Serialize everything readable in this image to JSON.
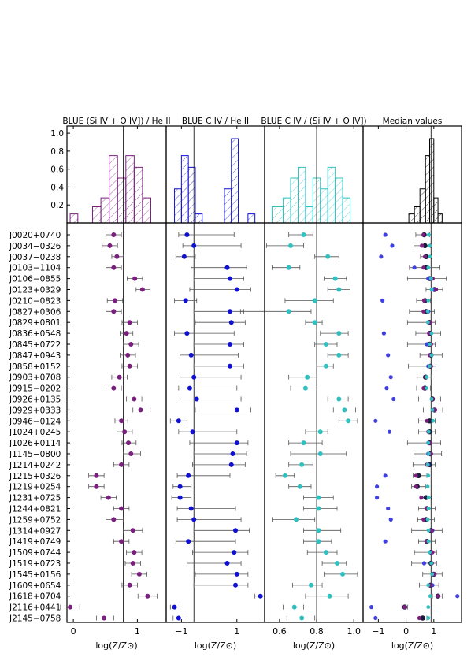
{
  "chart_data": {
    "type": "scatter",
    "panels": [
      {
        "title": "BLUE (Si IV + O IV]) / He II",
        "xlabel": "log(Z/Z⊙)",
        "xlim": [
          -0.1,
          1.45
        ],
        "xticks": [
          "0",
          "1"
        ],
        "xtick_values": [
          0,
          1
        ],
        "ref_line": 0.78,
        "color": "#7b1f7f",
        "hist_hatch": "#7b1f7f",
        "hist": [
          {
            "from": -0.05,
            "to": 0.07,
            "h": 0.1
          },
          {
            "from": 0.3,
            "to": 0.43,
            "h": 0.18
          },
          {
            "from": 0.43,
            "to": 0.56,
            "h": 0.28
          },
          {
            "from": 0.56,
            "to": 0.69,
            "h": 0.75
          },
          {
            "from": 0.69,
            "to": 0.82,
            "h": 0.5
          },
          {
            "from": 0.82,
            "to": 0.95,
            "h": 0.75
          },
          {
            "from": 0.95,
            "to": 1.08,
            "h": 0.62
          },
          {
            "from": 1.08,
            "to": 1.21,
            "h": 0.28
          }
        ]
      },
      {
        "title": "BLUE C IV / He II",
        "xlabel": "log(Z/Z⊙)",
        "xlim": [
          -1.55,
          2.0
        ],
        "xticks": [
          "−1",
          "1"
        ],
        "xtick_values": [
          -1,
          1
        ],
        "ref_line": -0.55,
        "color": "#1010d0",
        "hist_hatch": "#1010d0",
        "hist": [
          {
            "from": -1.25,
            "to": -1.0,
            "h": 0.38
          },
          {
            "from": -1.0,
            "to": -0.75,
            "h": 0.75
          },
          {
            "from": -0.75,
            "to": -0.5,
            "h": 0.62
          },
          {
            "from": -0.5,
            "to": -0.25,
            "h": 0.1
          },
          {
            "from": 0.55,
            "to": 0.8,
            "h": 0.38
          },
          {
            "from": 0.8,
            "to": 1.05,
            "h": 0.94
          },
          {
            "from": 1.4,
            "to": 1.65,
            "h": 0.1
          }
        ]
      },
      {
        "title": "BLUE C IV / (Si IV + O IV])",
        "xlabel": "log(Z/Z⊙)",
        "xlim": [
          0.52,
          1.05
        ],
        "xticks": [
          "0.6",
          "0.8",
          "1.0"
        ],
        "xtick_values": [
          0.6,
          0.8,
          1.0
        ],
        "ref_line": 0.8,
        "color": "#30c0c0",
        "hist_hatch": "#30c0c0",
        "hist": [
          {
            "from": 0.56,
            "to": 0.62,
            "h": 0.18
          },
          {
            "from": 0.62,
            "to": 0.66,
            "h": 0.28
          },
          {
            "from": 0.66,
            "to": 0.7,
            "h": 0.5
          },
          {
            "from": 0.7,
            "to": 0.74,
            "h": 0.62
          },
          {
            "from": 0.74,
            "to": 0.78,
            "h": 0.18
          },
          {
            "from": 0.78,
            "to": 0.82,
            "h": 0.5
          },
          {
            "from": 0.82,
            "to": 0.86,
            "h": 0.38
          },
          {
            "from": 0.86,
            "to": 0.9,
            "h": 0.62
          },
          {
            "from": 0.9,
            "to": 0.94,
            "h": 0.5
          },
          {
            "from": 0.94,
            "to": 0.98,
            "h": 0.28
          }
        ]
      },
      {
        "title": "Median values",
        "xlabel": "log(Z/Z⊙)",
        "xlim": [
          -1.55,
          2.0
        ],
        "xticks": [
          "−1",
          "0",
          "1"
        ],
        "xtick_values": [
          -1,
          0,
          1
        ],
        "ref_line": 0.9,
        "color": "#000000",
        "hist_hatch": "#000000",
        "hist": [
          {
            "from": 0.1,
            "to": 0.3,
            "h": 0.1
          },
          {
            "from": 0.3,
            "to": 0.5,
            "h": 0.18
          },
          {
            "from": 0.5,
            "to": 0.7,
            "h": 0.38
          },
          {
            "from": 0.7,
            "to": 0.85,
            "h": 0.75
          },
          {
            "from": 0.85,
            "to": 1.0,
            "h": 0.94
          },
          {
            "from": 1.0,
            "to": 1.15,
            "h": 0.28
          },
          {
            "from": 1.15,
            "to": 1.3,
            "h": 0.1
          }
        ]
      }
    ],
    "hist_yticks": [
      "0.2",
      "0.4",
      "0.6",
      "0.8",
      "1.0"
    ],
    "hist_ytick_values": [
      0.2,
      0.4,
      0.6,
      0.8,
      1.0
    ],
    "objects": [
      "J0020+0740",
      "J0034−0326",
      "J0037−0238",
      "J0103−1104",
      "J0106−0855",
      "J0123+0329",
      "J0210−0823",
      "J0827+0306",
      "J0829+0801",
      "J0836+0548",
      "J0845+0722",
      "J0847+0943",
      "J0858+0152",
      "J0903+0708",
      "J0915−0202",
      "J0926+0135",
      "J0929+0333",
      "J0946−0124",
      "J1024+0245",
      "J1026+0114",
      "J1145−0800",
      "J1214+0242",
      "J1215+0326",
      "J1219+0254",
      "J1231+0725",
      "J1244+0821",
      "J1259+0752",
      "J1314+0927",
      "J1419+0749",
      "J1509+0744",
      "J1519+0723",
      "J1545+0156",
      "J1609+0654",
      "J1618+0704",
      "J2116+0441",
      "J2145−0758"
    ],
    "series": [
      {
        "name": "BLUE (Si IV + O IV]) / He II",
        "values": [
          0.63,
          0.57,
          0.68,
          0.63,
          0.96,
          1.08,
          0.65,
          0.63,
          0.88,
          0.83,
          0.9,
          0.85,
          0.88,
          0.72,
          0.63,
          0.95,
          1.05,
          0.75,
          0.8,
          0.86,
          0.9,
          0.75,
          0.36,
          0.36,
          0.55,
          0.75,
          0.63,
          0.93,
          0.75,
          0.95,
          0.93,
          1.03,
          0.88,
          1.16,
          -0.05,
          0.48
        ],
        "err_minus": [
          0.12,
          0.12,
          0.08,
          0.12,
          0.12,
          0.1,
          0.12,
          0.12,
          0.12,
          0.1,
          0.12,
          0.12,
          0.12,
          0.12,
          0.12,
          0.12,
          0.12,
          0.1,
          0.12,
          0.1,
          0.12,
          0.12,
          0.12,
          0.12,
          0.12,
          0.12,
          0.12,
          0.15,
          0.12,
          0.12,
          0.12,
          0.12,
          0.12,
          0.15,
          0.15,
          0.12
        ],
        "err_plus": [
          0.12,
          0.12,
          0.1,
          0.12,
          0.12,
          0.12,
          0.12,
          0.12,
          0.12,
          0.1,
          0.12,
          0.12,
          0.12,
          0.12,
          0.12,
          0.12,
          0.15,
          0.1,
          0.12,
          0.12,
          0.15,
          0.12,
          0.12,
          0.12,
          0.12,
          0.12,
          0.15,
          0.15,
          0.12,
          0.12,
          0.12,
          0.12,
          0.12,
          0.15,
          0.15,
          0.15
        ]
      },
      {
        "name": "BLUE C IV / He II",
        "values": [
          -0.8,
          -0.55,
          -0.9,
          0.65,
          0.75,
          1.0,
          -0.85,
          0.75,
          0.8,
          -0.8,
          0.75,
          -0.65,
          0.75,
          -0.55,
          -0.7,
          -0.45,
          1.0,
          -1.1,
          -0.6,
          1.0,
          0.85,
          0.8,
          -0.75,
          -1.05,
          -1.05,
          -0.65,
          -0.55,
          0.95,
          -0.75,
          0.9,
          0.65,
          1.0,
          0.95,
          1.85,
          -1.25,
          -1.1
        ],
        "err_minus": [
          0.3,
          0.4,
          0.3,
          1.3,
          1.3,
          1.7,
          0.4,
          1.3,
          1.3,
          0.45,
          1.3,
          0.4,
          1.3,
          0.5,
          0.4,
          0.6,
          1.5,
          0.3,
          0.5,
          1.7,
          1.4,
          1.4,
          0.4,
          0.25,
          0.3,
          0.5,
          0.6,
          1.5,
          0.45,
          1.5,
          1.45,
          1.5,
          1.5,
          0.2,
          0.15,
          0.2
        ],
        "err_plus": [
          1.7,
          1.7,
          0.4,
          0.7,
          0.5,
          0.5,
          0.4,
          0.5,
          0.5,
          1.7,
          0.5,
          1.7,
          0.5,
          1.7,
          1.7,
          1.6,
          0.5,
          0.3,
          1.6,
          0.4,
          0.5,
          0.5,
          1.5,
          0.4,
          0.4,
          1.6,
          1.7,
          0.5,
          1.7,
          0.5,
          0.5,
          0.4,
          0.45,
          0.15,
          0.2,
          0.3
        ]
      },
      {
        "name": "BLUE C IV / (Si IV + O IV])",
        "values": [
          0.73,
          0.66,
          0.86,
          0.65,
          0.9,
          0.92,
          0.79,
          0.65,
          0.79,
          0.92,
          0.85,
          0.92,
          0.85,
          0.75,
          0.74,
          0.92,
          0.95,
          0.97,
          0.82,
          0.73,
          0.82,
          0.72,
          0.63,
          0.71,
          0.81,
          0.81,
          0.69,
          0.81,
          0.81,
          0.85,
          0.91,
          0.94,
          0.77,
          0.87,
          0.68,
          0.72
        ],
        "err_minus": [
          0.08,
          0.13,
          0.07,
          0.09,
          0.06,
          0.06,
          0.16,
          0.26,
          0.05,
          0.1,
          0.06,
          0.06,
          0.05,
          0.1,
          0.08,
          0.06,
          0.06,
          0.05,
          0.08,
          0.08,
          0.16,
          0.07,
          0.05,
          0.06,
          0.08,
          0.08,
          0.13,
          0.08,
          0.08,
          0.1,
          0.08,
          0.1,
          0.1,
          0.13,
          0.06,
          0.08
        ],
        "err_plus": [
          0.05,
          0.07,
          0.06,
          0.06,
          0.06,
          0.06,
          0.1,
          0.12,
          0.04,
          0.05,
          0.06,
          0.05,
          0.04,
          0.05,
          0.06,
          0.05,
          0.06,
          0.05,
          0.04,
          0.1,
          0.14,
          0.06,
          0.05,
          0.06,
          0.08,
          0.1,
          0.1,
          0.12,
          0.07,
          0.06,
          0.05,
          0.08,
          0.06,
          0.1,
          0.05,
          0.07
        ]
      },
      {
        "name": "Median values",
        "values": [
          0.65,
          0.68,
          0.72,
          0.72,
          0.85,
          1.02,
          0.68,
          0.72,
          0.85,
          0.85,
          0.85,
          0.9,
          0.88,
          0.7,
          0.68,
          0.95,
          1.02,
          0.85,
          0.85,
          0.85,
          0.88,
          0.85,
          0.45,
          0.4,
          0.72,
          0.75,
          0.72,
          0.9,
          0.75,
          0.9,
          0.9,
          1.0,
          0.88,
          1.15,
          -0.05,
          0.6
        ],
        "err_minus": [
          0.3,
          0.4,
          0.2,
          0.6,
          0.8,
          0.3,
          0.3,
          0.6,
          0.8,
          0.5,
          0.8,
          0.4,
          0.8,
          0.3,
          0.3,
          0.5,
          0.4,
          0.4,
          0.4,
          0.8,
          0.6,
          0.6,
          0.2,
          0.2,
          0.2,
          0.3,
          0.3,
          0.7,
          0.3,
          0.6,
          0.7,
          0.4,
          0.4,
          0.2,
          0.1,
          0.2
        ],
        "err_plus": [
          0.2,
          0.2,
          0.2,
          0.5,
          0.6,
          0.3,
          0.2,
          0.3,
          0.2,
          0.4,
          0.2,
          0.4,
          0.2,
          0.2,
          0.2,
          0.3,
          0.3,
          0.2,
          0.2,
          0.4,
          0.4,
          0.2,
          0.3,
          0.3,
          0.2,
          0.3,
          0.3,
          0.4,
          0.3,
          0.2,
          0.2,
          0.3,
          0.3,
          0.15,
          0.1,
          0.15
        ],
        "blue_values": [
          -0.75,
          -0.5,
          -0.9,
          0.3,
          0.8,
          1.0,
          -0.85,
          0.8,
          0.8,
          -0.8,
          0.75,
          -0.65,
          0.8,
          -0.55,
          -0.7,
          -0.45,
          1.0,
          -1.1,
          -0.6,
          0.8,
          0.8,
          0.8,
          -0.75,
          -1.05,
          -1.05,
          -0.65,
          -0.55,
          0.95,
          -0.75,
          0.9,
          0.65,
          1.0,
          0.95,
          1.85,
          -1.25,
          -1.1
        ],
        "purple_values": [
          0.63,
          0.57,
          0.68,
          0.63,
          0.96,
          1.08,
          0.65,
          0.63,
          0.88,
          0.83,
          0.9,
          0.85,
          0.88,
          0.72,
          0.63,
          0.95,
          1.05,
          0.75,
          0.8,
          0.86,
          0.9,
          0.75,
          0.36,
          0.36,
          0.55,
          0.75,
          0.63,
          0.93,
          0.75,
          0.95,
          0.93,
          1.03,
          0.88,
          1.16,
          -0.05,
          0.48
        ],
        "cyan_values": [
          0.82,
          0.85,
          0.86,
          0.8,
          0.9,
          0.92,
          0.8,
          0.78,
          0.79,
          0.92,
          0.85,
          0.92,
          0.85,
          0.75,
          0.74,
          0.92,
          0.95,
          0.97,
          0.82,
          0.8,
          0.82,
          0.78,
          0.8,
          0.78,
          0.81,
          0.81,
          0.78,
          0.81,
          0.81,
          0.85,
          0.91,
          0.94,
          0.8,
          0.87,
          0.8,
          0.8
        ]
      }
    ]
  }
}
